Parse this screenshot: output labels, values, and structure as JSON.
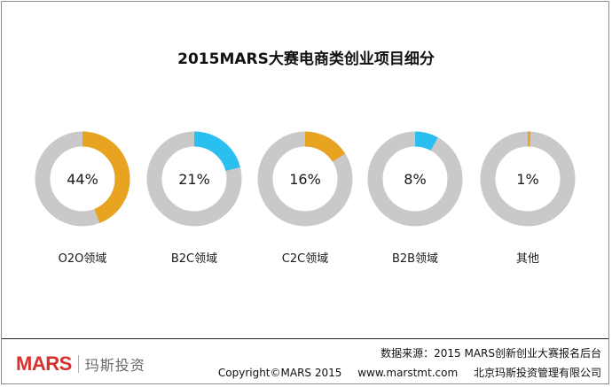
{
  "chart_data": {
    "type": "pie",
    "title": "2015MARS大赛电商类创业项目细分",
    "categories": [
      "O2O领域",
      "B2C领域",
      "C2C领域",
      "B2B领域",
      "其他"
    ],
    "values": [
      44,
      21,
      16,
      8,
      1
    ],
    "value_labels": [
      "44%",
      "21%",
      "16%",
      "8%",
      "1%"
    ],
    "unit": "%",
    "colors": {
      "O2O领域": "#E8A321",
      "B2C领域": "#2BBFF0",
      "C2C领域": "#E8A321",
      "B2B领域": "#2BBFF0",
      "其他": "#E8A321"
    },
    "track_color": "#C9C9C9",
    "legend": "none"
  },
  "footer": {
    "source": "数据来源：2015 MARS创新创业大赛报名后台",
    "copyright": "Copyright©MARS 2015",
    "website": "www.marstmt.com",
    "company": "北京玛斯投资管理有限公司",
    "logo_text": "MARS",
    "logo_cn": "玛斯投资"
  }
}
